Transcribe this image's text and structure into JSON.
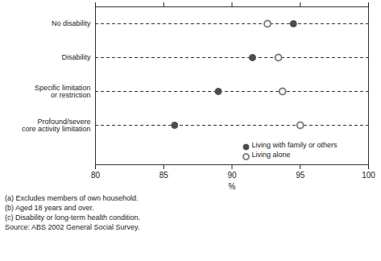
{
  "chart_data": {
    "type": "dot",
    "categories": [
      "No disability",
      "Disability",
      "Specific limitation\nor restriction",
      "Profound/severe\ncore activity limitation"
    ],
    "series": [
      {
        "name": "Living with family or others",
        "color": "#4d4d4d",
        "marker": "circle",
        "values": [
          94.5,
          91.5,
          89.0,
          85.8
        ]
      },
      {
        "name": "Living alone",
        "color": "#808080",
        "marker": "ring",
        "values": [
          92.6,
          93.4,
          93.7,
          95.0
        ]
      }
    ],
    "x_label": "%",
    "xlim": [
      80,
      100
    ],
    "xticks": [
      80,
      85,
      90,
      95,
      100
    ],
    "grid": true,
    "legend": "bottom-right",
    "notes": [
      "(a) Excludes members of own household.",
      "(b) Aged 18 years and over.",
      "(c) Disability or long-term health condition."
    ],
    "source": "Source: ABS 2002 General Social Survey."
  }
}
